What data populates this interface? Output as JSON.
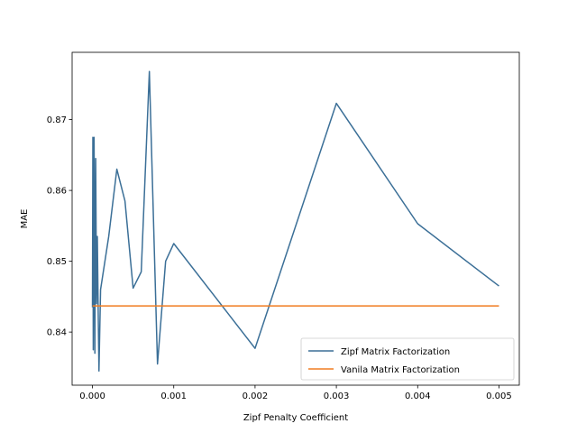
{
  "chart_data": {
    "type": "line",
    "title": "",
    "xlabel": "Zipf Penalty Coefficient",
    "ylabel": "MAE",
    "xlim": [
      -0.00025,
      0.00525
    ],
    "ylim": [
      0.8325,
      0.8795
    ],
    "x_ticks": [
      0,
      0.001,
      0.002,
      0.003,
      0.004,
      0.005
    ],
    "x_tick_labels": [
      "0.000",
      "0.001",
      "0.002",
      "0.003",
      "0.004",
      "0.005"
    ],
    "y_ticks": [
      0.84,
      0.85,
      0.86,
      0.87
    ],
    "y_tick_labels": [
      "0.84",
      "0.85",
      "0.86",
      "0.87"
    ],
    "grid": false,
    "legend_position": "lower-right",
    "series": [
      {
        "name": "Zipf Matrix Factorization",
        "color": "#3b6f97",
        "x": [
          0,
          5e-06,
          1e-05,
          2e-05,
          3e-05,
          4e-05,
          5e-05,
          6e-05,
          7e-05,
          8e-05,
          0.0001,
          0.0002,
          0.0003,
          0.0004,
          0.0005,
          0.0006,
          0.0007,
          0.0008,
          0.0009,
          0.001,
          0.002,
          0.003,
          0.004,
          0.005
        ],
        "y": [
          0.8435,
          0.8675,
          0.8375,
          0.8675,
          0.837,
          0.8645,
          0.844,
          0.8535,
          0.8435,
          0.8345,
          0.846,
          0.8535,
          0.863,
          0.8585,
          0.8462,
          0.8485,
          0.8768,
          0.8355,
          0.85,
          0.8525,
          0.8377,
          0.8723,
          0.8553,
          0.8465
        ]
      },
      {
        "name": "Vanila Matrix Factorization",
        "color": "#f07d22",
        "x": [
          0,
          0.005
        ],
        "y": [
          0.8437,
          0.8437
        ]
      }
    ]
  }
}
